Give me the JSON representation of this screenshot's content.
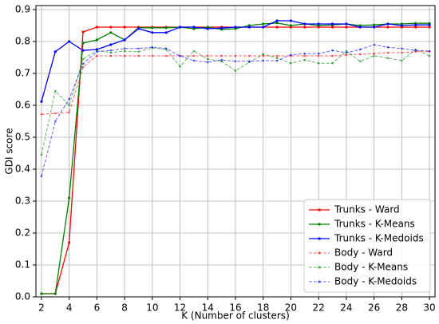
{
  "chart_data": {
    "type": "line",
    "xlabel": "K (Number of clusters)",
    "ylabel": "GDI score",
    "x": [
      2,
      3,
      4,
      5,
      6,
      7,
      8,
      9,
      10,
      11,
      12,
      13,
      14,
      15,
      16,
      17,
      18,
      19,
      20,
      21,
      22,
      23,
      24,
      25,
      26,
      27,
      28,
      29,
      30
    ],
    "series": [
      {
        "name": "Trunks - Ward",
        "color": "#ff0000",
        "linestyle": "solid",
        "values": [
          0.01,
          0.01,
          0.17,
          0.83,
          0.845,
          0.845,
          0.845,
          0.845,
          0.845,
          0.845,
          0.845,
          0.845,
          0.845,
          0.845,
          0.845,
          0.845,
          0.845,
          0.845,
          0.845,
          0.845,
          0.845,
          0.845,
          0.845,
          0.845,
          0.845,
          0.845,
          0.845,
          0.845,
          0.845
        ]
      },
      {
        "name": "Trunks - K-Means",
        "color": "#008000",
        "linestyle": "solid",
        "values": [
          0.01,
          0.01,
          0.31,
          0.795,
          0.805,
          0.828,
          0.805,
          0.843,
          0.843,
          0.843,
          0.845,
          0.84,
          0.845,
          0.838,
          0.84,
          0.85,
          0.855,
          0.858,
          0.85,
          0.855,
          0.85,
          0.852,
          0.855,
          0.85,
          0.852,
          0.855,
          0.855,
          0.857,
          0.857
        ]
      },
      {
        "name": "Trunks - K-Medoids",
        "color": "#0000ff",
        "linestyle": "solid",
        "values": [
          0.612,
          0.768,
          0.8,
          0.772,
          0.775,
          0.79,
          0.805,
          0.84,
          0.828,
          0.828,
          0.845,
          0.845,
          0.84,
          0.842,
          0.845,
          0.845,
          0.845,
          0.865,
          0.865,
          0.855,
          0.855,
          0.855,
          0.855,
          0.845,
          0.845,
          0.855,
          0.85,
          0.852,
          0.852
        ]
      },
      {
        "name": "Body - Ward",
        "color": "#ff0000",
        "linestyle": "dashed",
        "values": [
          0.572,
          0.575,
          0.578,
          0.72,
          0.755,
          0.755,
          0.755,
          0.755,
          0.755,
          0.755,
          0.755,
          0.755,
          0.755,
          0.755,
          0.755,
          0.755,
          0.755,
          0.755,
          0.755,
          0.755,
          0.755,
          0.755,
          0.758,
          0.76,
          0.762,
          0.765,
          0.765,
          0.768,
          0.768
        ]
      },
      {
        "name": "Body - K-Means",
        "color": "#008000",
        "linestyle": "dashed",
        "values": [
          0.445,
          0.645,
          0.6,
          0.745,
          0.772,
          0.765,
          0.77,
          0.768,
          0.78,
          0.775,
          0.722,
          0.77,
          0.745,
          0.738,
          0.708,
          0.735,
          0.76,
          0.748,
          0.732,
          0.742,
          0.732,
          0.732,
          0.77,
          0.738,
          0.755,
          0.748,
          0.74,
          0.775,
          0.755
        ]
      },
      {
        "name": "Body - K-Medoids",
        "color": "#0000ff",
        "linestyle": "dashed",
        "values": [
          0.378,
          0.55,
          0.62,
          0.73,
          0.768,
          0.772,
          0.778,
          0.778,
          0.782,
          0.778,
          0.755,
          0.74,
          0.735,
          0.742,
          0.738,
          0.738,
          0.74,
          0.74,
          0.758,
          0.762,
          0.762,
          0.772,
          0.765,
          0.775,
          0.79,
          0.782,
          0.778,
          0.772,
          0.77
        ]
      }
    ],
    "xlim": [
      1.6,
      30.4
    ],
    "ylim": [
      0,
      0.9125
    ],
    "xticks": [
      2,
      4,
      6,
      8,
      10,
      12,
      14,
      16,
      18,
      20,
      22,
      24,
      26,
      28,
      30
    ],
    "yticks": [
      {
        "value": 0,
        "label": "0.0"
      },
      0.1,
      0.2,
      0.3,
      0.4,
      0.5,
      0.6,
      0.7,
      0.8,
      0.9
    ],
    "grid": true,
    "legend": "lower right"
  }
}
